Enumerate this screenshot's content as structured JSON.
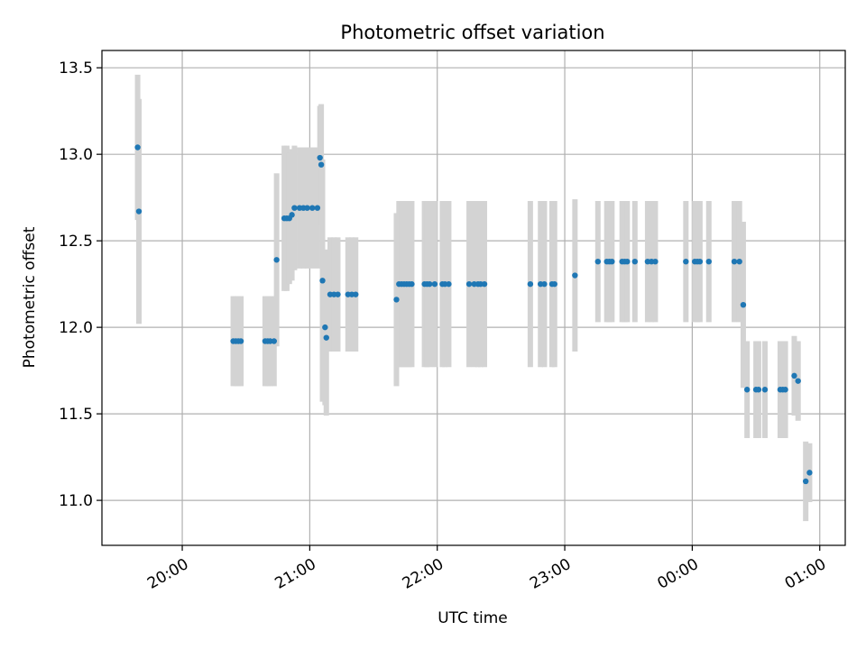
{
  "chart_data": {
    "type": "scatter",
    "title": "Photometric offset variation",
    "xlabel": "UTC time",
    "ylabel": "Photometric offset",
    "grid": true,
    "legend": "none",
    "x_unit": "UTC time, hours after 00:00 of the first day (24 = next-day 00:00)",
    "xlim": [
      19.37,
      25.2
    ],
    "ylim": [
      10.74,
      13.6
    ],
    "x_ticks": [
      {
        "value": 20,
        "label": "20:00"
      },
      {
        "value": 21,
        "label": "21:00"
      },
      {
        "value": 22,
        "label": "22:00"
      },
      {
        "value": 23,
        "label": "23:00"
      },
      {
        "value": 24,
        "label": "00:00"
      },
      {
        "value": 25,
        "label": "01:00"
      }
    ],
    "y_ticks": [
      {
        "value": 11.0,
        "label": "11.0"
      },
      {
        "value": 11.5,
        "label": "11.5"
      },
      {
        "value": 12.0,
        "label": "12.0"
      },
      {
        "value": 12.5,
        "label": "12.5"
      },
      {
        "value": 13.0,
        "label": "13.0"
      },
      {
        "value": 13.5,
        "label": "13.5"
      }
    ],
    "colors": {
      "marker": "#1f77b4",
      "errorbar": "#d3d3d3",
      "grid": "#b0b0b0"
    },
    "points": [
      [
        19.65,
        13.04,
        0.42
      ],
      [
        19.66,
        12.67,
        0.65
      ],
      [
        20.4,
        11.92,
        0.26
      ],
      [
        20.42,
        11.92,
        0.26
      ],
      [
        20.44,
        11.92,
        0.26
      ],
      [
        20.46,
        11.92,
        0.26
      ],
      [
        20.65,
        11.92,
        0.26
      ],
      [
        20.67,
        11.92,
        0.26
      ],
      [
        20.69,
        11.92,
        0.26
      ],
      [
        20.72,
        11.92,
        0.26
      ],
      [
        20.74,
        12.39,
        0.5
      ],
      [
        20.8,
        12.63,
        0.42
      ],
      [
        20.82,
        12.63,
        0.42
      ],
      [
        20.84,
        12.63,
        0.38
      ],
      [
        20.86,
        12.65,
        0.38
      ],
      [
        20.88,
        12.69,
        0.36
      ],
      [
        20.92,
        12.69,
        0.35
      ],
      [
        20.95,
        12.69,
        0.35
      ],
      [
        20.98,
        12.69,
        0.35
      ],
      [
        21.02,
        12.69,
        0.35
      ],
      [
        21.06,
        12.69,
        0.35
      ],
      [
        21.08,
        12.98,
        0.3
      ],
      [
        21.09,
        12.94,
        0.35
      ],
      [
        21.1,
        12.27,
        0.7
      ],
      [
        21.12,
        12.0,
        0.45
      ],
      [
        21.13,
        11.94,
        0.45
      ],
      [
        21.16,
        12.19,
        0.33
      ],
      [
        21.19,
        12.19,
        0.33
      ],
      [
        21.22,
        12.19,
        0.33
      ],
      [
        21.3,
        12.19,
        0.33
      ],
      [
        21.33,
        12.19,
        0.33
      ],
      [
        21.36,
        12.19,
        0.33
      ],
      [
        21.68,
        12.16,
        0.5
      ],
      [
        21.7,
        12.25,
        0.48
      ],
      [
        21.72,
        12.25,
        0.48
      ],
      [
        21.74,
        12.25,
        0.48
      ],
      [
        21.76,
        12.25,
        0.48
      ],
      [
        21.78,
        12.25,
        0.48
      ],
      [
        21.8,
        12.25,
        0.48
      ],
      [
        21.9,
        12.25,
        0.48
      ],
      [
        21.92,
        12.25,
        0.48
      ],
      [
        21.94,
        12.25,
        0.48
      ],
      [
        21.98,
        12.25,
        0.48
      ],
      [
        22.04,
        12.25,
        0.48
      ],
      [
        22.06,
        12.25,
        0.48
      ],
      [
        22.09,
        12.25,
        0.48
      ],
      [
        22.25,
        12.25,
        0.48
      ],
      [
        22.29,
        12.25,
        0.48
      ],
      [
        22.32,
        12.25,
        0.48
      ],
      [
        22.34,
        12.25,
        0.48
      ],
      [
        22.37,
        12.25,
        0.48
      ],
      [
        22.73,
        12.25,
        0.48
      ],
      [
        22.81,
        12.25,
        0.48
      ],
      [
        22.84,
        12.25,
        0.48
      ],
      [
        22.9,
        12.25,
        0.48
      ],
      [
        22.92,
        12.25,
        0.48
      ],
      [
        23.08,
        12.3,
        0.44
      ],
      [
        23.26,
        12.38,
        0.35
      ],
      [
        23.33,
        12.38,
        0.35
      ],
      [
        23.35,
        12.38,
        0.35
      ],
      [
        23.37,
        12.38,
        0.35
      ],
      [
        23.45,
        12.38,
        0.35
      ],
      [
        23.47,
        12.38,
        0.35
      ],
      [
        23.49,
        12.38,
        0.35
      ],
      [
        23.55,
        12.38,
        0.35
      ],
      [
        23.65,
        12.38,
        0.35
      ],
      [
        23.68,
        12.38,
        0.35
      ],
      [
        23.71,
        12.38,
        0.35
      ],
      [
        23.95,
        12.38,
        0.35
      ],
      [
        24.02,
        12.38,
        0.35
      ],
      [
        24.04,
        12.38,
        0.35
      ],
      [
        24.06,
        12.38,
        0.35
      ],
      [
        24.13,
        12.38,
        0.35
      ],
      [
        24.33,
        12.38,
        0.35
      ],
      [
        24.37,
        12.38,
        0.35
      ],
      [
        24.4,
        12.13,
        0.48
      ],
      [
        24.43,
        11.64,
        0.28
      ],
      [
        24.5,
        11.64,
        0.28
      ],
      [
        24.52,
        11.64,
        0.28
      ],
      [
        24.57,
        11.64,
        0.28
      ],
      [
        24.69,
        11.64,
        0.28
      ],
      [
        24.71,
        11.64,
        0.28
      ],
      [
        24.73,
        11.64,
        0.28
      ],
      [
        24.8,
        11.72,
        0.23
      ],
      [
        24.83,
        11.69,
        0.23
      ],
      [
        24.89,
        11.11,
        0.23
      ],
      [
        24.92,
        11.16,
        0.17
      ]
    ]
  }
}
